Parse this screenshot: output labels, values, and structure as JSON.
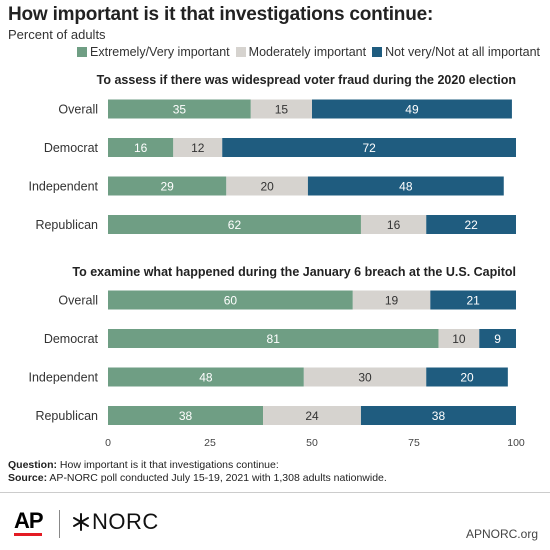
{
  "header": {
    "title": "How important is it that investigations continue:",
    "subtitle": "Percent of adults"
  },
  "legend": [
    {
      "label": "Extremely/Very important",
      "color": "#6f9e84"
    },
    {
      "label": "Moderately important",
      "color": "#d6d3cf"
    },
    {
      "label": "Not very/Not at all important",
      "color": "#1f5c7f"
    }
  ],
  "chart_data": [
    {
      "type": "bar",
      "orientation": "horizontal",
      "stacked": true,
      "title": "To assess if there was widespread voter fraud during the 2020 election",
      "categories": [
        "Overall",
        "Democrat",
        "Independent",
        "Republican"
      ],
      "series": [
        {
          "name": "Extremely/Very important",
          "values": [
            35,
            16,
            29,
            62
          ]
        },
        {
          "name": "Moderately important",
          "values": [
            15,
            12,
            20,
            16
          ]
        },
        {
          "name": "Not very/Not at all important",
          "values": [
            49,
            72,
            48,
            22
          ]
        }
      ],
      "xlim": [
        0,
        100
      ]
    },
    {
      "type": "bar",
      "orientation": "horizontal",
      "stacked": true,
      "title": "To examine what happened during the January 6 breach at the U.S. Capitol",
      "categories": [
        "Overall",
        "Democrat",
        "Independent",
        "Republican"
      ],
      "series": [
        {
          "name": "Extremely/Very important",
          "values": [
            60,
            81,
            48,
            38
          ]
        },
        {
          "name": "Moderately important",
          "values": [
            19,
            10,
            30,
            24
          ]
        },
        {
          "name": "Not very/Not at all important",
          "values": [
            21,
            9,
            20,
            38
          ]
        }
      ],
      "xlim": [
        0,
        100
      ],
      "xticks": [
        0,
        25,
        50,
        75,
        100
      ]
    }
  ],
  "footer": {
    "question_label": "Question:",
    "question_text": " How important is it that investigations continue:",
    "source_label": "Source:",
    "source_text": " AP-NORC poll conducted July 15-19, 2021 with 1,308 adults nationwide."
  },
  "branding": {
    "ap_logo": "AP",
    "norc_logo": "NORC",
    "website": "APNORC.org"
  }
}
